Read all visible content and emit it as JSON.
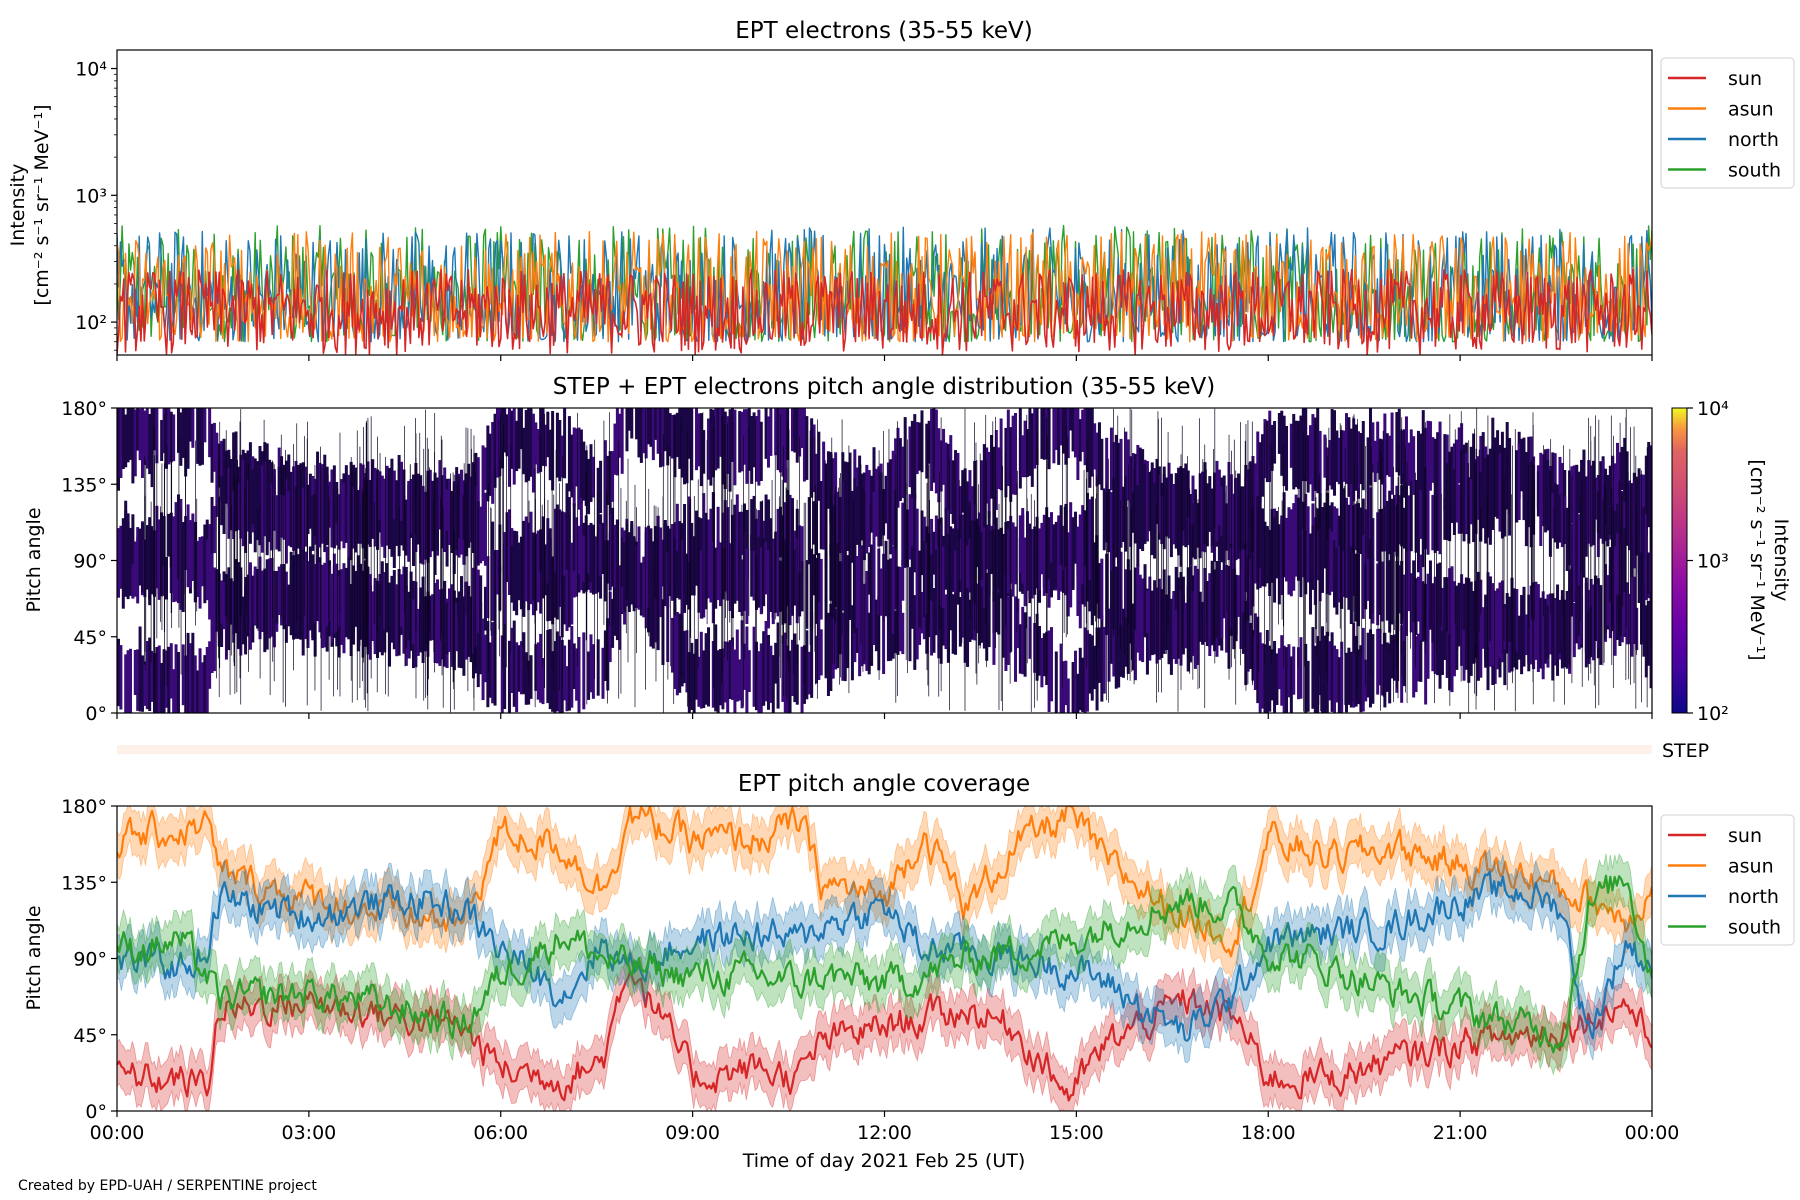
{
  "footer": {
    "credit": "Created by EPD-UAH / SERPENTINE project"
  },
  "chart_data": [
    {
      "type": "line",
      "title": "EPT electrons (35-55 keV)",
      "ylabel_line1": "Intensity",
      "ylabel_line2": "[cm⁻² s⁻¹ sr⁻¹ MeV⁻¹]",
      "yscale": "log",
      "ylim": [
        55,
        14000
      ],
      "y_ticks": [
        "10²",
        "10³",
        "10⁴"
      ],
      "xlim_hours": [
        0,
        24
      ],
      "legend_position": "outside-right-top",
      "series": [
        {
          "name": "sun",
          "color": "#d62728",
          "typical_range": [
            55,
            260
          ]
        },
        {
          "name": "asun",
          "color": "#ff7f0e",
          "typical_range": [
            70,
            520
          ]
        },
        {
          "name": "north",
          "color": "#1f77b4",
          "typical_range": [
            70,
            560
          ]
        },
        {
          "name": "south",
          "color": "#2ca02c",
          "typical_range": [
            70,
            580
          ]
        }
      ]
    },
    {
      "type": "heatmap",
      "title": "STEP + EPT electrons pitch angle distribution (35-55 keV)",
      "ylabel": "Pitch angle",
      "ylim": [
        0,
        180
      ],
      "y_ticks": [
        "0°",
        "45°",
        "90°",
        "135°",
        "180°"
      ],
      "xlim_hours": [
        0,
        24
      ],
      "colorbar": {
        "label_line1": "Intensity",
        "label_line2": "[cm⁻² s⁻¹ sr⁻¹ MeV⁻¹]",
        "scale": "log",
        "range": [
          100,
          10000
        ],
        "ticks": [
          "10²",
          "10³",
          "10⁴"
        ],
        "colormap": "plasma"
      }
    },
    {
      "type": "bar",
      "label": "STEP",
      "color": "#fdf1ea"
    },
    {
      "type": "line",
      "title": "EPT pitch angle coverage",
      "ylabel": "Pitch angle",
      "xlabel": "Time of day 2021 Feb 25 (UT)",
      "ylim": [
        0,
        180
      ],
      "y_ticks": [
        "0°",
        "45°",
        "90°",
        "135°",
        "180°"
      ],
      "x_ticks": [
        "00:00",
        "03:00",
        "06:00",
        "09:00",
        "12:00",
        "15:00",
        "18:00",
        "21:00",
        "00:00"
      ],
      "xlim_hours": [
        0,
        24
      ],
      "legend_position": "outside-right-top",
      "band_halfwidth_deg": 13,
      "series": [
        {
          "name": "sun",
          "color": "#d62728",
          "x": [
            0,
            1,
            1.4,
            1.6,
            3,
            4.5,
            5.4,
            6,
            7,
            7.6,
            8,
            9,
            10,
            10.7,
            11,
            12,
            12.6,
            13.3,
            14,
            14.9,
            15.5,
            16.7,
            17.5,
            18,
            19,
            20,
            21,
            22,
            22.6,
            23,
            23.6,
            24
          ],
          "y": [
            20,
            18,
            15,
            60,
            65,
            55,
            50,
            25,
            20,
            30,
            90,
            20,
            25,
            20,
            40,
            50,
            55,
            60,
            50,
            10,
            40,
            65,
            55,
            20,
            20,
            30,
            40,
            45,
            50,
            55,
            65,
            40
          ]
        },
        {
          "name": "asun",
          "color": "#ff7f0e",
          "x": [
            0,
            1,
            1.4,
            1.6,
            3,
            4.5,
            5.4,
            6,
            7,
            7.6,
            8,
            9,
            10,
            10.7,
            11,
            12,
            12.6,
            13.3,
            14,
            14.9,
            15.5,
            16.7,
            17.5,
            18,
            19,
            20,
            21,
            22,
            22.6,
            23,
            23.6,
            24
          ],
          "y": [
            160,
            165,
            170,
            140,
            125,
            115,
            110,
            165,
            155,
            130,
            175,
            160,
            160,
            170,
            135,
            125,
            165,
            120,
            155,
            175,
            145,
            115,
            105,
            160,
            150,
            155,
            145,
            140,
            130,
            125,
            115,
            130
          ]
        },
        {
          "name": "north",
          "color": "#1f77b4",
          "x": [
            0,
            1,
            1.4,
            1.6,
            3,
            4.5,
            5.4,
            6,
            7,
            7.6,
            8,
            9,
            10,
            10.7,
            11,
            12,
            12.6,
            13.3,
            14,
            14.9,
            15.5,
            16.7,
            17.5,
            18,
            19,
            20,
            21,
            22,
            22.6,
            23,
            23.6,
            24
          ],
          "y": [
            90,
            85,
            95,
            125,
            115,
            125,
            120,
            95,
            70,
            100,
            85,
            100,
            105,
            100,
            110,
            120,
            95,
            95,
            90,
            85,
            75,
            45,
            70,
            100,
            105,
            110,
            125,
            130,
            120,
            45,
            100,
            85
          ]
        },
        {
          "name": "south",
          "color": "#2ca02c",
          "x": [
            0,
            1,
            1.4,
            1.6,
            3,
            4.5,
            5.4,
            6,
            7,
            7.6,
            8,
            9,
            10,
            10.7,
            11,
            12,
            12.6,
            13.3,
            14,
            14.9,
            15.5,
            16.7,
            17.5,
            18,
            19,
            20,
            21,
            22,
            22.6,
            23,
            23.6,
            24
          ],
          "y": [
            95,
            100,
            80,
            65,
            70,
            60,
            50,
            80,
            105,
            90,
            85,
            80,
            80,
            75,
            80,
            75,
            80,
            90,
            95,
            100,
            110,
            125,
            120,
            95,
            85,
            70,
            60,
            50,
            45,
            120,
            140,
            80
          ]
        }
      ]
    }
  ]
}
